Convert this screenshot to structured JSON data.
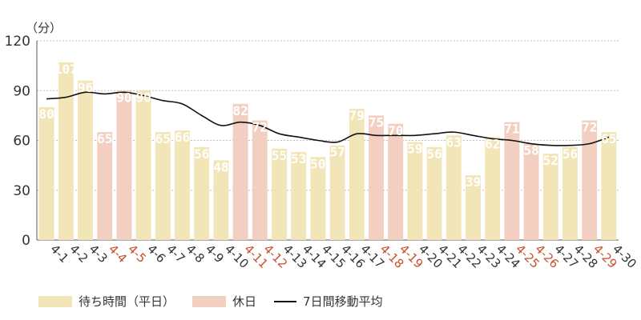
{
  "chart_data": {
    "type": "bar",
    "unit_label": "（分）",
    "categories": [
      "4-1",
      "4-2",
      "4-3",
      "4-4",
      "4-5",
      "4-6",
      "4-7",
      "4-8",
      "4-9",
      "4-10",
      "4-11",
      "4-12",
      "4-13",
      "4-14",
      "4-15",
      "4-16",
      "4-17",
      "4-18",
      "4-19",
      "4-20",
      "4-21",
      "4-22",
      "4-23",
      "4-24",
      "4-25",
      "4-26",
      "4-27",
      "4-28",
      "4-29",
      "4-30"
    ],
    "values": [
      80,
      107,
      96,
      65,
      90,
      90,
      65,
      66,
      56,
      48,
      82,
      72,
      55,
      53,
      50,
      57,
      79,
      75,
      70,
      59,
      56,
      63,
      39,
      62,
      71,
      58,
      52,
      56,
      72,
      65
    ],
    "holidays": [
      "4-4",
      "4-5",
      "4-11",
      "4-12",
      "4-18",
      "4-19",
      "4-25",
      "4-26",
      "4-29"
    ],
    "moving_average": [
      85,
      86,
      89,
      88,
      89,
      87,
      84,
      82,
      75,
      69,
      71,
      69,
      64,
      62,
      60,
      59,
      64,
      63,
      63,
      63,
      64,
      65,
      63,
      61,
      60,
      58,
      57,
      57,
      58,
      62
    ],
    "ylim": [
      0,
      120
    ],
    "yticks": [
      0,
      30,
      60,
      90,
      120
    ],
    "colors": {
      "weekday": "#f2e5b8",
      "holiday": "#f3cfc2",
      "holiday_text": "#c9502d",
      "line": "#111111"
    },
    "legend": [
      {
        "label": "待ち時間（平日）",
        "kind": "weekday"
      },
      {
        "label": "休日",
        "kind": "holiday"
      },
      {
        "label": "7日間移動平均",
        "kind": "line"
      }
    ]
  }
}
